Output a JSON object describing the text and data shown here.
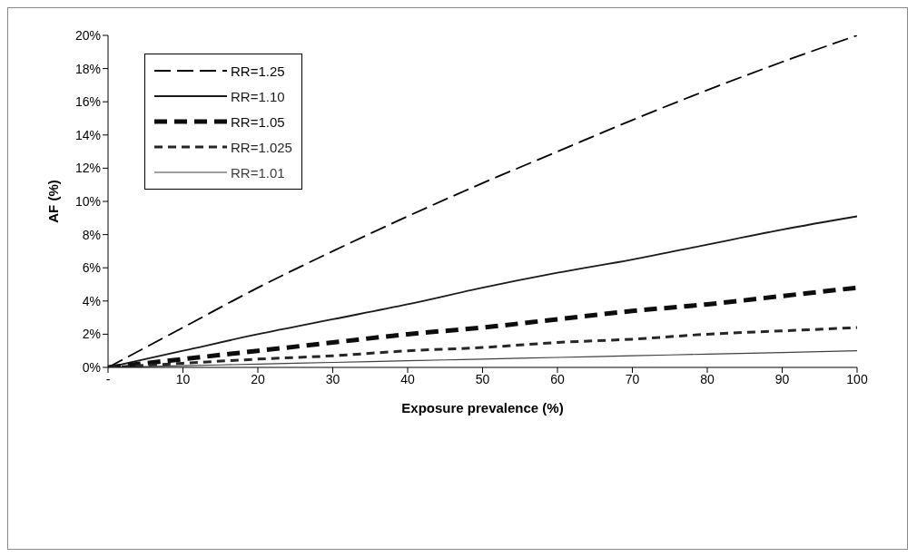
{
  "chart_data": {
    "type": "line",
    "xlabel": "Exposure prevalence (%)",
    "ylabel": "AF (%)",
    "x": [
      0,
      10,
      20,
      30,
      40,
      50,
      60,
      70,
      80,
      90,
      100
    ],
    "xlim": [
      0,
      100
    ],
    "xticks": [
      {
        "value": 0,
        "label": "-"
      },
      10,
      20,
      30,
      40,
      50,
      60,
      70,
      80,
      90,
      100
    ],
    "ylim": [
      0,
      20
    ],
    "yticks": [
      {
        "value": 0,
        "label": "0%"
      },
      {
        "value": 2,
        "label": "2%"
      },
      {
        "value": 4,
        "label": "4%"
      },
      {
        "value": 6,
        "label": "6%"
      },
      {
        "value": 8,
        "label": "8%"
      },
      {
        "value": 10,
        "label": "10%"
      },
      {
        "value": 12,
        "label": "12%"
      },
      {
        "value": 14,
        "label": "14%"
      },
      {
        "value": 16,
        "label": "16%"
      },
      {
        "value": 18,
        "label": "18%"
      },
      {
        "value": 20,
        "label": "20%"
      }
    ],
    "grid": false,
    "legend": "top left",
    "marker": "none",
    "series": [
      {
        "name": "RR=1.25",
        "color": "#000000",
        "line_style": "dashed",
        "values": [
          0,
          2.4,
          4.8,
          7.0,
          9.1,
          11.1,
          13.0,
          14.9,
          16.7,
          18.4,
          20.0
        ]
      },
      {
        "name": "RR=1.10",
        "color": "#1a1a1a",
        "line_style": "solid",
        "values": [
          0,
          1.0,
          2.0,
          2.9,
          3.8,
          4.8,
          5.7,
          6.5,
          7.4,
          8.3,
          9.1
        ]
      },
      {
        "name": "RR=1.05",
        "color": "#0d0d0d",
        "line_style": "dashed",
        "values": [
          0,
          0.5,
          1.0,
          1.5,
          2.0,
          2.4,
          2.9,
          3.4,
          3.8,
          4.3,
          4.8
        ]
      },
      {
        "name": "RR=1.025",
        "color": "#262626",
        "line_style": "dashed",
        "values": [
          0,
          0.25,
          0.5,
          0.7,
          1.0,
          1.2,
          1.5,
          1.7,
          2.0,
          2.2,
          2.4
        ]
      },
      {
        "name": "RR=1.01",
        "color": "#404040",
        "line_style": "solid",
        "values": [
          0,
          0.1,
          0.2,
          0.3,
          0.4,
          0.5,
          0.6,
          0.7,
          0.8,
          0.9,
          1.0
        ]
      }
    ]
  }
}
